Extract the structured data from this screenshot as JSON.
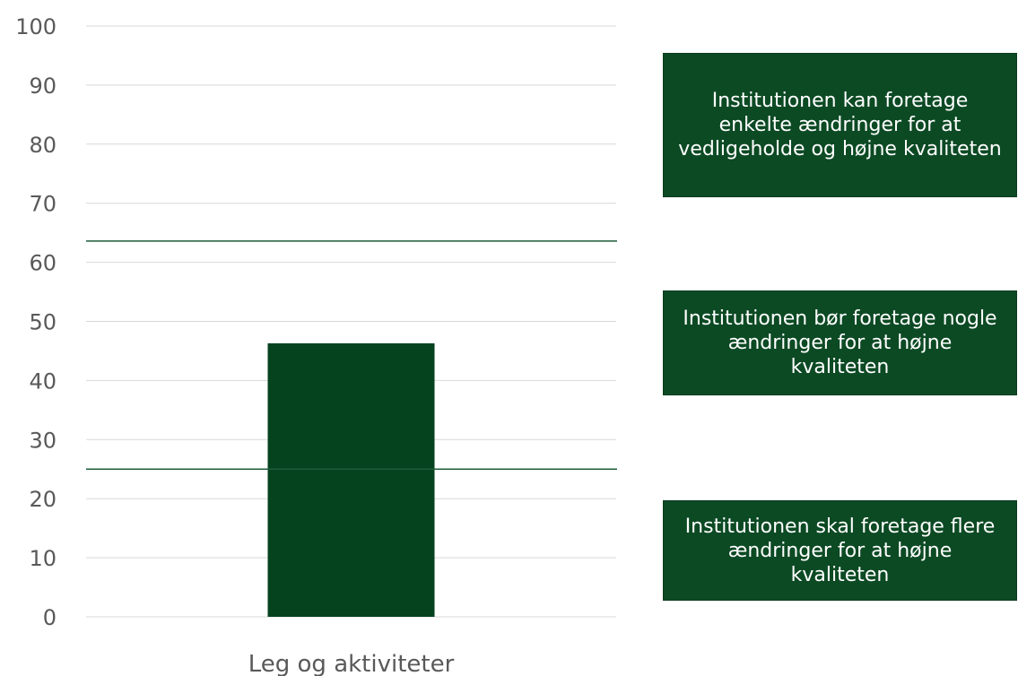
{
  "chart_data": {
    "type": "bar",
    "categories": [
      "Leg og aktiviteter"
    ],
    "values": [
      46.3
    ],
    "title": "",
    "xlabel": "",
    "ylabel": "",
    "ylim": [
      0,
      100
    ],
    "yticks": [
      0,
      10,
      20,
      30,
      40,
      50,
      60,
      70,
      80,
      90,
      100
    ],
    "grid": true,
    "threshold_lines": [
      25,
      63.6
    ],
    "colors": {
      "bar": "#05431f",
      "threshold": "#1f5c3a",
      "grid": "#d9d9d9",
      "text": "#595959",
      "note_bg": "#0c4a24"
    }
  },
  "notes": {
    "top": "Institutionen kan foretage enkelte ændringer for at vedligeholde og højne kvaliteten",
    "mid": "Institutionen bør foretage nogle ændringer for at højne kvaliteten",
    "bot": "Institutionen skal foretage flere ændringer for at højne kvaliteten"
  }
}
